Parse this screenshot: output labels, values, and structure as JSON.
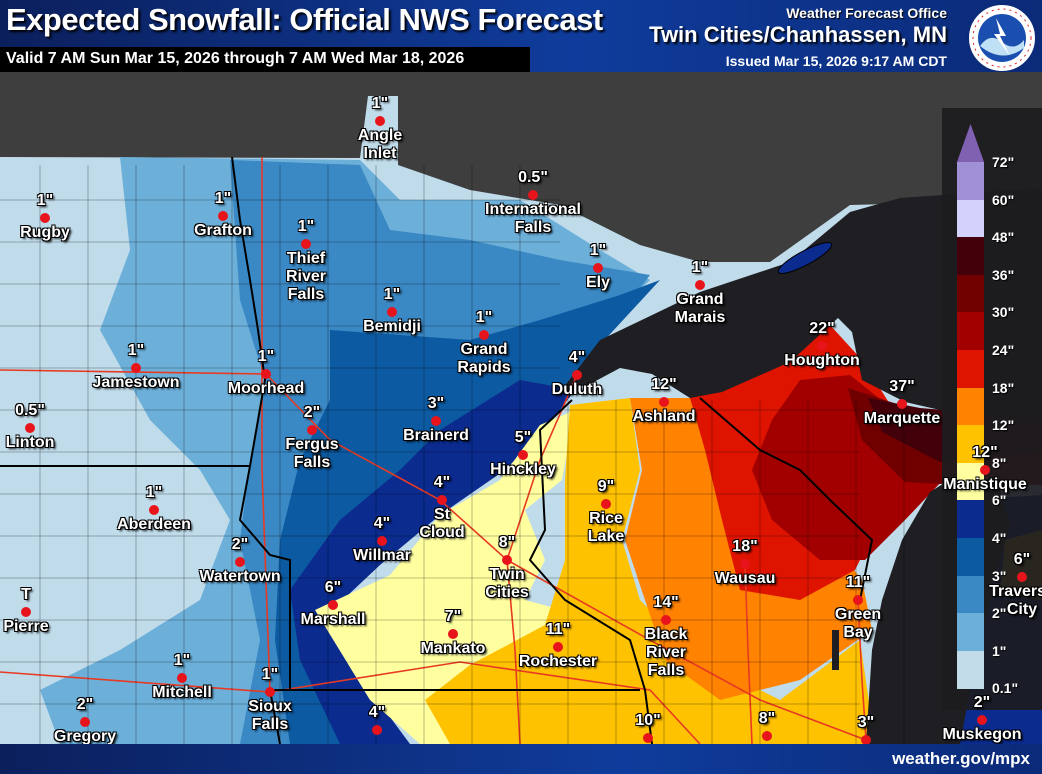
{
  "header": {
    "title": "Expected Snowfall: Official NWS Forecast",
    "valid": "Valid 7 AM Sun Mar 15, 2026 through 7 AM Wed Mar 18, 2026",
    "office_label": "Weather Forecast Office",
    "office": "Twin Cities/Chanhassen, MN",
    "issued": "Issued Mar 15, 2026 9:17 AM CDT",
    "logo_text": "NATIONAL WEATHER SERVICE"
  },
  "footer": {
    "site": "weather.gov/mpx"
  },
  "legend": {
    "labels": [
      "72\"",
      "60\"",
      "48\"",
      "36\"",
      "30\"",
      "24\"",
      "18\"",
      "12\"",
      "8\"",
      "6\"",
      "4\"",
      "3\"",
      "2\"",
      "1\"",
      "0.1\""
    ],
    "colors": [
      "#a090d6",
      "#d2d2fc",
      "#42000a",
      "#700000",
      "#a20000",
      "#de1400",
      "#ff8200",
      "#ffc200",
      "#ffffa0",
      "#0b2b8e",
      "#0c5aa2",
      "#3a88c4",
      "#6cb0da",
      "#c2dcea"
    ],
    "arrow_color": "#8060b0"
  },
  "cities": [
    {
      "name": "Angle\nInlet",
      "amount": "1\""
    },
    {
      "name": "International\nFalls",
      "amount": "0.5\""
    },
    {
      "name": "Rugby",
      "amount": "1\""
    },
    {
      "name": "Grafton",
      "amount": "1\""
    },
    {
      "name": "Thief\nRiver\nFalls",
      "amount": "1\""
    },
    {
      "name": "Ely",
      "amount": "1\""
    },
    {
      "name": "Grand\nMarais",
      "amount": "1\""
    },
    {
      "name": "Bemidji",
      "amount": "1\""
    },
    {
      "name": "Grand\nRapids",
      "amount": "1\""
    },
    {
      "name": "Jamestown",
      "amount": "1\""
    },
    {
      "name": "Moorhead",
      "amount": "1\""
    },
    {
      "name": "Linton",
      "amount": "0.5\""
    },
    {
      "name": "Fergus\nFalls",
      "amount": "2\""
    },
    {
      "name": "Brainerd",
      "amount": "3\""
    },
    {
      "name": "Duluth",
      "amount": "4\""
    },
    {
      "name": "Ashland",
      "amount": "12\""
    },
    {
      "name": "Houghton",
      "amount": "22\""
    },
    {
      "name": "Marquette",
      "amount": "37\""
    },
    {
      "name": "Hinckley",
      "amount": "5\""
    },
    {
      "name": "St Cloud",
      "amount": "4\""
    },
    {
      "name": "Aberdeen",
      "amount": "1\""
    },
    {
      "name": "Rice\nLake",
      "amount": "9\""
    },
    {
      "name": "Willmar",
      "amount": "4\""
    },
    {
      "name": "Twin\nCities",
      "amount": "8\""
    },
    {
      "name": "Watertown",
      "amount": "2\""
    },
    {
      "name": "Wausau",
      "amount": "18\""
    },
    {
      "name": "Manistique",
      "amount": "12\""
    },
    {
      "name": "Traverse\nCity",
      "amount": "6\""
    },
    {
      "name": "Green\nBay",
      "amount": "11\""
    },
    {
      "name": "Pierre",
      "amount": "T"
    },
    {
      "name": "Marshall",
      "amount": "6\""
    },
    {
      "name": "Mankato",
      "amount": "7\""
    },
    {
      "name": "Black\nRiver\nFalls",
      "amount": "14\""
    },
    {
      "name": "Rochester",
      "amount": "11\""
    },
    {
      "name": "Mitchell",
      "amount": "1\""
    },
    {
      "name": "Sioux\nFalls",
      "amount": "1\""
    },
    {
      "name": "Gregory",
      "amount": "2\""
    },
    {
      "name": "",
      "amount": "4\""
    },
    {
      "name": "",
      "amount": "10\""
    },
    {
      "name": "",
      "amount": "8\""
    },
    {
      "name": "",
      "amount": "3\""
    },
    {
      "name": "Muskegon",
      "amount": "2\""
    }
  ]
}
